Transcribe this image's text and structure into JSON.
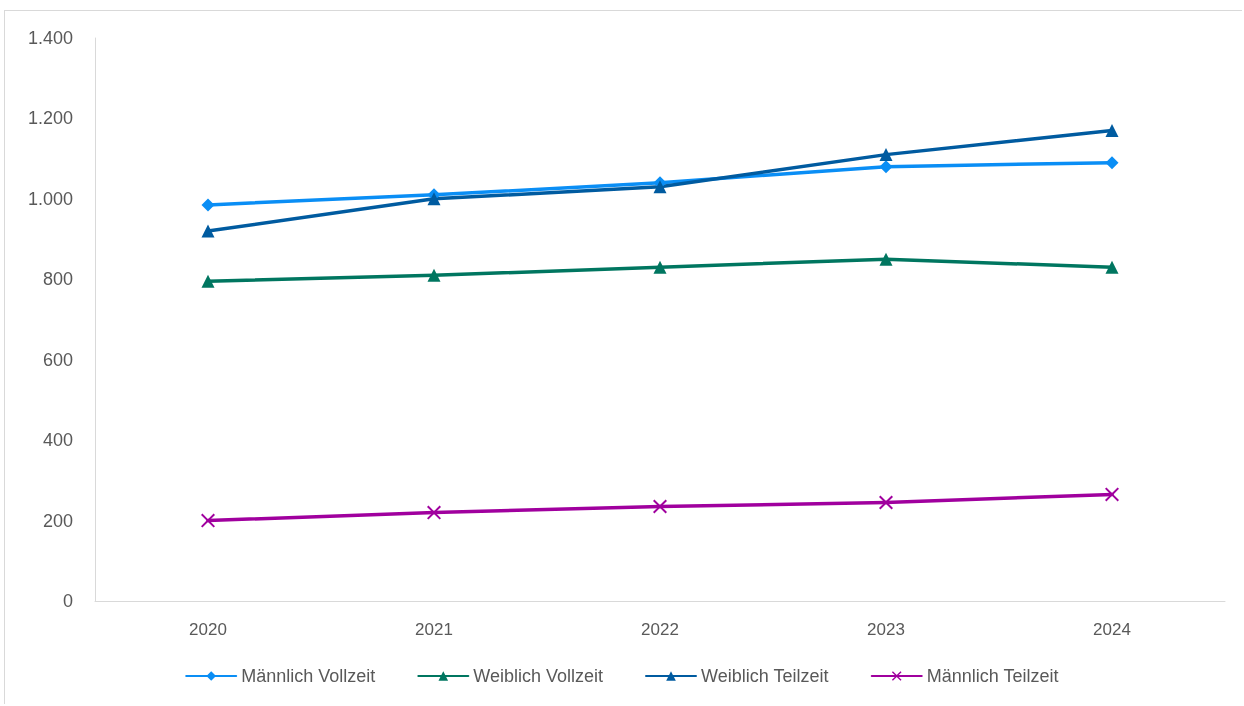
{
  "chart_data": {
    "type": "line",
    "categories": [
      "2020",
      "2021",
      "2022",
      "2023",
      "2024"
    ],
    "ylim": [
      0,
      1400
    ],
    "yticks": [
      0,
      200,
      400,
      600,
      800,
      {
        "value": 1000,
        "label": "1.000"
      },
      {
        "value": 1200,
        "label": "1.200"
      },
      {
        "value": 1400,
        "label": "1.400"
      }
    ],
    "series": [
      {
        "name": "Männlich Vollzeit",
        "color": "#0a8ef5",
        "marker": "diamond",
        "values": [
          985,
          1010,
          1040,
          1080,
          1090
        ]
      },
      {
        "name": "Weiblich Vollzeit",
        "color": "#007660",
        "marker": "triangle",
        "values": [
          795,
          810,
          830,
          850,
          830
        ]
      },
      {
        "name": "Weiblich Teilzeit",
        "color": "#005ba0",
        "marker": "triangle",
        "values": [
          920,
          1000,
          1030,
          1110,
          1170
        ]
      },
      {
        "name": "Männlich Teilzeit",
        "color": "#a0009e",
        "marker": "cross",
        "values": [
          200,
          220,
          235,
          245,
          265
        ]
      }
    ],
    "legend": "bottom",
    "grid": false,
    "line_style": "solid"
  }
}
